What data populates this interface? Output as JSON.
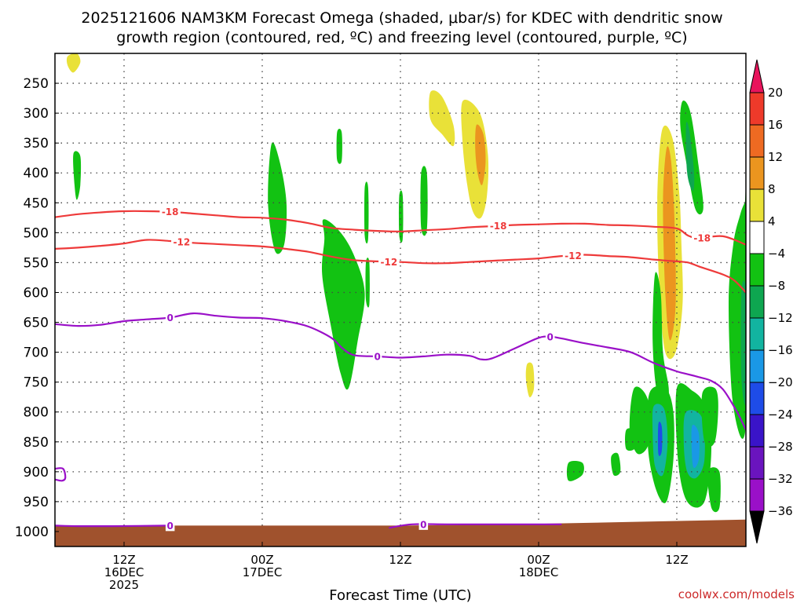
{
  "chart_data": {
    "type": "heatmap",
    "title_line1": "2025121606 NAM3KM Forecast Omega (shaded, μbar/s) for KDEC with dendritic snow",
    "title_line2": "growth region (contoured, red, ºC) and freezing level (contoured, purple, ºC)",
    "xlabel": "Forecast Time (UTC)",
    "credit": "coolwx.com/models",
    "y_axis": {
      "quantity": "pressure (mb)",
      "inverted": true,
      "ticks": [
        250,
        300,
        350,
        400,
        450,
        500,
        550,
        600,
        650,
        700,
        750,
        800,
        850,
        900,
        950,
        1000
      ],
      "range": [
        1025,
        200
      ]
    },
    "x_axis": {
      "quantity": "forecast hour",
      "range": [
        0,
        60
      ],
      "ticks": [
        {
          "hour": 6,
          "lines": [
            "12Z",
            "16DEC",
            "2025"
          ]
        },
        {
          "hour": 18,
          "lines": [
            "00Z",
            "17DEC"
          ]
        },
        {
          "hour": 30,
          "lines": [
            "12Z"
          ]
        },
        {
          "hour": 42,
          "lines": [
            "00Z",
            "18DEC"
          ]
        },
        {
          "hour": 54,
          "lines": [
            "12Z"
          ]
        }
      ]
    },
    "colorbar": {
      "labels": [
        "20",
        "16",
        "12",
        "8",
        "4",
        "−4",
        "−8",
        "−12",
        "−16",
        "−20",
        "−24",
        "−28",
        "−32",
        "−36"
      ],
      "colors": [
        "#e8145c",
        "#ee3a2a",
        "#ee6a22",
        "#eb951f",
        "#e8c72c",
        "#e9e138",
        "#ffffff",
        "#ffffff",
        "#12c212",
        "#0ea650",
        "#12b4a0",
        "#1a98e6",
        "#1e4ce8",
        "#3a14c8",
        "#6a14be",
        "#9a10c8",
        "#9c9c9c",
        "#c4c4c4",
        "#000000"
      ]
    },
    "isotherms": [
      {
        "label": "-18",
        "color": "#ee3a3a",
        "x": [
          0,
          2,
          4,
          6,
          8,
          10,
          12,
          14,
          16,
          18,
          20,
          22,
          24,
          26,
          28,
          30,
          32,
          34,
          36,
          38,
          40,
          42,
          44,
          46,
          48,
          50,
          52,
          54,
          55,
          56,
          58,
          60
        ],
        "y": [
          474,
          469,
          466,
          464,
          464,
          465,
          468,
          471,
          474,
          475,
          478,
          484,
          492,
          495,
          497,
          498,
          496,
          494,
          491,
          489,
          487,
          486,
          485,
          485,
          487,
          488,
          490,
          493,
          505,
          509,
          506,
          520
        ],
        "labels_at": [
          10,
          38.5,
          56.2
        ]
      },
      {
        "label": "-12",
        "color": "#ee3a3a",
        "x": [
          0,
          2,
          4,
          6,
          8,
          10,
          12,
          14,
          16,
          18,
          20,
          22,
          24,
          26,
          28,
          30,
          32,
          34,
          36,
          38,
          40,
          42,
          44,
          46,
          48,
          50,
          52,
          54,
          55,
          56,
          58,
          59,
          60
        ],
        "y": [
          527,
          525,
          522,
          518,
          512,
          514,
          517,
          519,
          521,
          523,
          527,
          532,
          540,
          546,
          548,
          549,
          551,
          551,
          549,
          547,
          545,
          543,
          539,
          537,
          539,
          541,
          545,
          548,
          550,
          557,
          570,
          580,
          600
        ],
        "labels_at": [
          11,
          29,
          45
        ]
      },
      {
        "label": "0",
        "color": "#9a10c8",
        "x": [
          0,
          2,
          4,
          6,
          8,
          10,
          12,
          14,
          16,
          18,
          20,
          22,
          24,
          25,
          26,
          28,
          30,
          32,
          34,
          36,
          37,
          38,
          40,
          42,
          43,
          44,
          46,
          48,
          50,
          52,
          54,
          55,
          56,
          57,
          58,
          59,
          59.5,
          60
        ],
        "y": [
          653,
          656,
          654,
          648,
          645,
          642,
          635,
          639,
          642,
          643,
          648,
          657,
          676,
          694,
          705,
          707,
          709,
          707,
          704,
          706,
          712,
          710,
          693,
          676,
          674,
          677,
          685,
          692,
          700,
          718,
          732,
          737,
          742,
          748,
          762,
          792,
          810,
          830
        ],
        "labels_at": [
          10,
          28,
          43
        ]
      },
      {
        "label": "0",
        "color": "#9a10c8",
        "x": [
          0,
          2,
          5,
          10
        ],
        "y": [
          990,
          991,
          991,
          990
        ],
        "labels_at": [
          10
        ]
      },
      {
        "label": "0",
        "color": "#9a10c8",
        "x": [
          29,
          31,
          34,
          38,
          42,
          44
        ],
        "y": [
          994,
          988,
          988,
          988,
          988,
          988
        ],
        "labels_at": [
          32
        ]
      },
      {
        "label": "",
        "color": "#9a10c8",
        "x": [
          0,
          0.7,
          0.9,
          0.6,
          0
        ],
        "y": [
          895,
          895,
          910,
          915,
          913
        ],
        "labels_at": []
      }
    ],
    "omega_regions": [
      {
        "value": 6,
        "points": [
          [
            1.1,
            205
          ],
          [
            1.9,
            200
          ],
          [
            2.2,
            215
          ],
          [
            1.6,
            232
          ],
          [
            1.1,
            220
          ]
        ]
      },
      {
        "value": -6,
        "points": [
          [
            1.6,
            368
          ],
          [
            2.2,
            372
          ],
          [
            2.2,
            420
          ],
          [
            1.9,
            445
          ],
          [
            1.7,
            420
          ]
        ]
      },
      {
        "value": -6,
        "points": [
          [
            24.5,
            332
          ],
          [
            24.9,
            332
          ],
          [
            24.9,
            380
          ],
          [
            24.5,
            378
          ]
        ]
      },
      {
        "value": -6,
        "points": [
          [
            18.8,
            352
          ],
          [
            19.5,
            380
          ],
          [
            20.1,
            450
          ],
          [
            19.9,
            520
          ],
          [
            19.1,
            530
          ],
          [
            18.5,
            450
          ]
        ]
      },
      {
        "value": -6,
        "points": [
          [
            23.3,
            478
          ],
          [
            24.6,
            495
          ],
          [
            25.9,
            535
          ],
          [
            26.9,
            600
          ],
          [
            26.3,
            680
          ],
          [
            25.5,
            760
          ],
          [
            24.8,
            735
          ],
          [
            24.0,
            660
          ],
          [
            23.2,
            570
          ],
          [
            23.4,
            510
          ]
        ]
      },
      {
        "value": -6,
        "points": [
          [
            26.9,
            425
          ],
          [
            27.2,
            425
          ],
          [
            27.2,
            510
          ],
          [
            26.9,
            505
          ]
        ]
      },
      {
        "value": -6,
        "points": [
          [
            29.9,
            438
          ],
          [
            30.2,
            438
          ],
          [
            30.2,
            510
          ],
          [
            29.9,
            505
          ]
        ]
      },
      {
        "value": -6,
        "points": [
          [
            31.8,
            400
          ],
          [
            32.3,
            400
          ],
          [
            32.3,
            495
          ],
          [
            31.8,
            492
          ]
        ]
      },
      {
        "value": 6,
        "points": [
          [
            32.6,
            265
          ],
          [
            33.6,
            272
          ],
          [
            34.6,
            320
          ],
          [
            34.6,
            355
          ],
          [
            33.6,
            335
          ],
          [
            32.6,
            310
          ]
        ]
      },
      {
        "value": 6,
        "points": [
          [
            35.4,
            280
          ],
          [
            36.9,
            300
          ],
          [
            37.6,
            370
          ],
          [
            37.5,
            440
          ],
          [
            37.0,
            475
          ],
          [
            36.3,
            465
          ],
          [
            35.8,
            420
          ],
          [
            35.4,
            350
          ]
        ]
      },
      {
        "value": 10,
        "points": [
          [
            36.6,
            320
          ],
          [
            37.2,
            335
          ],
          [
            37.4,
            380
          ],
          [
            37.1,
            420
          ],
          [
            36.7,
            400
          ],
          [
            36.5,
            360
          ]
        ]
      },
      {
        "value": 6,
        "points": [
          [
            41.0,
            720
          ],
          [
            41.5,
            722
          ],
          [
            41.6,
            760
          ],
          [
            41.2,
            775
          ],
          [
            40.9,
            745
          ]
        ]
      },
      {
        "value": 6,
        "points": [
          [
            52.7,
            330
          ],
          [
            53.6,
            340
          ],
          [
            54.2,
            430
          ],
          [
            54.4,
            520
          ],
          [
            54.5,
            620
          ],
          [
            53.9,
            700
          ],
          [
            53.0,
            700
          ],
          [
            52.5,
            600
          ],
          [
            52.3,
            450
          ]
        ]
      },
      {
        "value": 10,
        "points": [
          [
            53.1,
            360
          ],
          [
            53.5,
            380
          ],
          [
            53.8,
            480
          ],
          [
            53.9,
            620
          ],
          [
            53.4,
            680
          ],
          [
            53.0,
            600
          ],
          [
            52.8,
            450
          ]
        ]
      },
      {
        "value": -6,
        "points": [
          [
            54.5,
            280
          ],
          [
            55.2,
            300
          ],
          [
            55.9,
            390
          ],
          [
            56.3,
            460
          ],
          [
            55.6,
            460
          ],
          [
            54.8,
            380
          ],
          [
            54.3,
            320
          ]
        ]
      },
      {
        "value": -10,
        "points": [
          [
            54.8,
            320
          ],
          [
            55.1,
            330
          ],
          [
            55.5,
            400
          ],
          [
            55.4,
            430
          ],
          [
            54.9,
            400
          ]
        ]
      },
      {
        "value": -6,
        "points": [
          [
            52.1,
            570
          ],
          [
            52.6,
            600
          ],
          [
            52.8,
            700
          ],
          [
            53.3,
            760
          ],
          [
            53.1,
            790
          ],
          [
            52.3,
            770
          ],
          [
            51.9,
            680
          ]
        ]
      },
      {
        "value": -6,
        "points": [
          [
            50.3,
            760
          ],
          [
            51.5,
            780
          ],
          [
            51.6,
            850
          ],
          [
            50.6,
            870
          ],
          [
            49.9,
            830
          ]
        ]
      },
      {
        "value": -6,
        "points": [
          [
            51.6,
            770
          ],
          [
            53.0,
            760
          ],
          [
            53.7,
            800
          ],
          [
            53.7,
            880
          ],
          [
            53.1,
            950
          ],
          [
            52.2,
            930
          ],
          [
            51.5,
            860
          ]
        ]
      },
      {
        "value": -14,
        "points": [
          [
            52.0,
            790
          ],
          [
            52.9,
            795
          ],
          [
            53.2,
            850
          ],
          [
            52.8,
            905
          ],
          [
            52.1,
            890
          ],
          [
            51.9,
            830
          ]
        ]
      },
      {
        "value": -22,
        "points": [
          [
            52.4,
            820
          ],
          [
            52.7,
            825
          ],
          [
            52.7,
            865
          ],
          [
            52.4,
            870
          ]
        ]
      },
      {
        "value": -6,
        "points": [
          [
            54.0,
            760
          ],
          [
            55.4,
            765
          ],
          [
            56.4,
            790
          ],
          [
            57.0,
            860
          ],
          [
            56.4,
            950
          ],
          [
            54.9,
            950
          ],
          [
            54.1,
            880
          ]
        ]
      },
      {
        "value": -14,
        "points": [
          [
            54.8,
            800
          ],
          [
            56.2,
            810
          ],
          [
            56.4,
            880
          ],
          [
            55.7,
            910
          ],
          [
            54.9,
            900
          ],
          [
            54.6,
            850
          ]
        ]
      },
      {
        "value": -18,
        "points": [
          [
            55.3,
            825
          ],
          [
            55.9,
            835
          ],
          [
            55.9,
            880
          ],
          [
            55.4,
            890
          ]
        ]
      },
      {
        "value": -6,
        "points": [
          [
            56.2,
            770
          ],
          [
            57.3,
            760
          ],
          [
            57.6,
            790
          ],
          [
            57.3,
            850
          ],
          [
            56.4,
            850
          ]
        ]
      },
      {
        "value": -6,
        "points": [
          [
            56.7,
            900
          ],
          [
            57.7,
            900
          ],
          [
            57.7,
            960
          ],
          [
            57.0,
            960
          ]
        ]
      },
      {
        "value": -6,
        "points": [
          [
            59.9,
            450
          ],
          [
            60,
            450
          ],
          [
            60,
            820
          ],
          [
            58.9,
            790
          ],
          [
            58.5,
            620
          ],
          [
            58.9,
            520
          ],
          [
            59.5,
            470
          ]
        ]
      },
      {
        "value": -10,
        "points": [
          [
            59.6,
            600
          ],
          [
            60,
            600
          ],
          [
            60,
            780
          ],
          [
            59.6,
            740
          ]
        ]
      },
      {
        "value": -6,
        "points": [
          [
            44.6,
            885
          ],
          [
            45.8,
            885
          ],
          [
            45.8,
            905
          ],
          [
            44.6,
            915
          ]
        ]
      },
      {
        "value": -6,
        "points": [
          [
            48.3,
            875
          ],
          [
            48.9,
            870
          ],
          [
            49.1,
            900
          ],
          [
            48.5,
            905
          ]
        ]
      },
      {
        "value": -6,
        "points": [
          [
            49.6,
            830
          ],
          [
            50.4,
            832
          ],
          [
            50.4,
            860
          ],
          [
            49.6,
            862
          ]
        ]
      },
      {
        "value": -6,
        "points": [
          [
            27.0,
            550
          ],
          [
            27.3,
            550
          ],
          [
            27.3,
            620
          ],
          [
            27.0,
            612
          ]
        ]
      }
    ],
    "terrain_color": "#a0522d"
  }
}
